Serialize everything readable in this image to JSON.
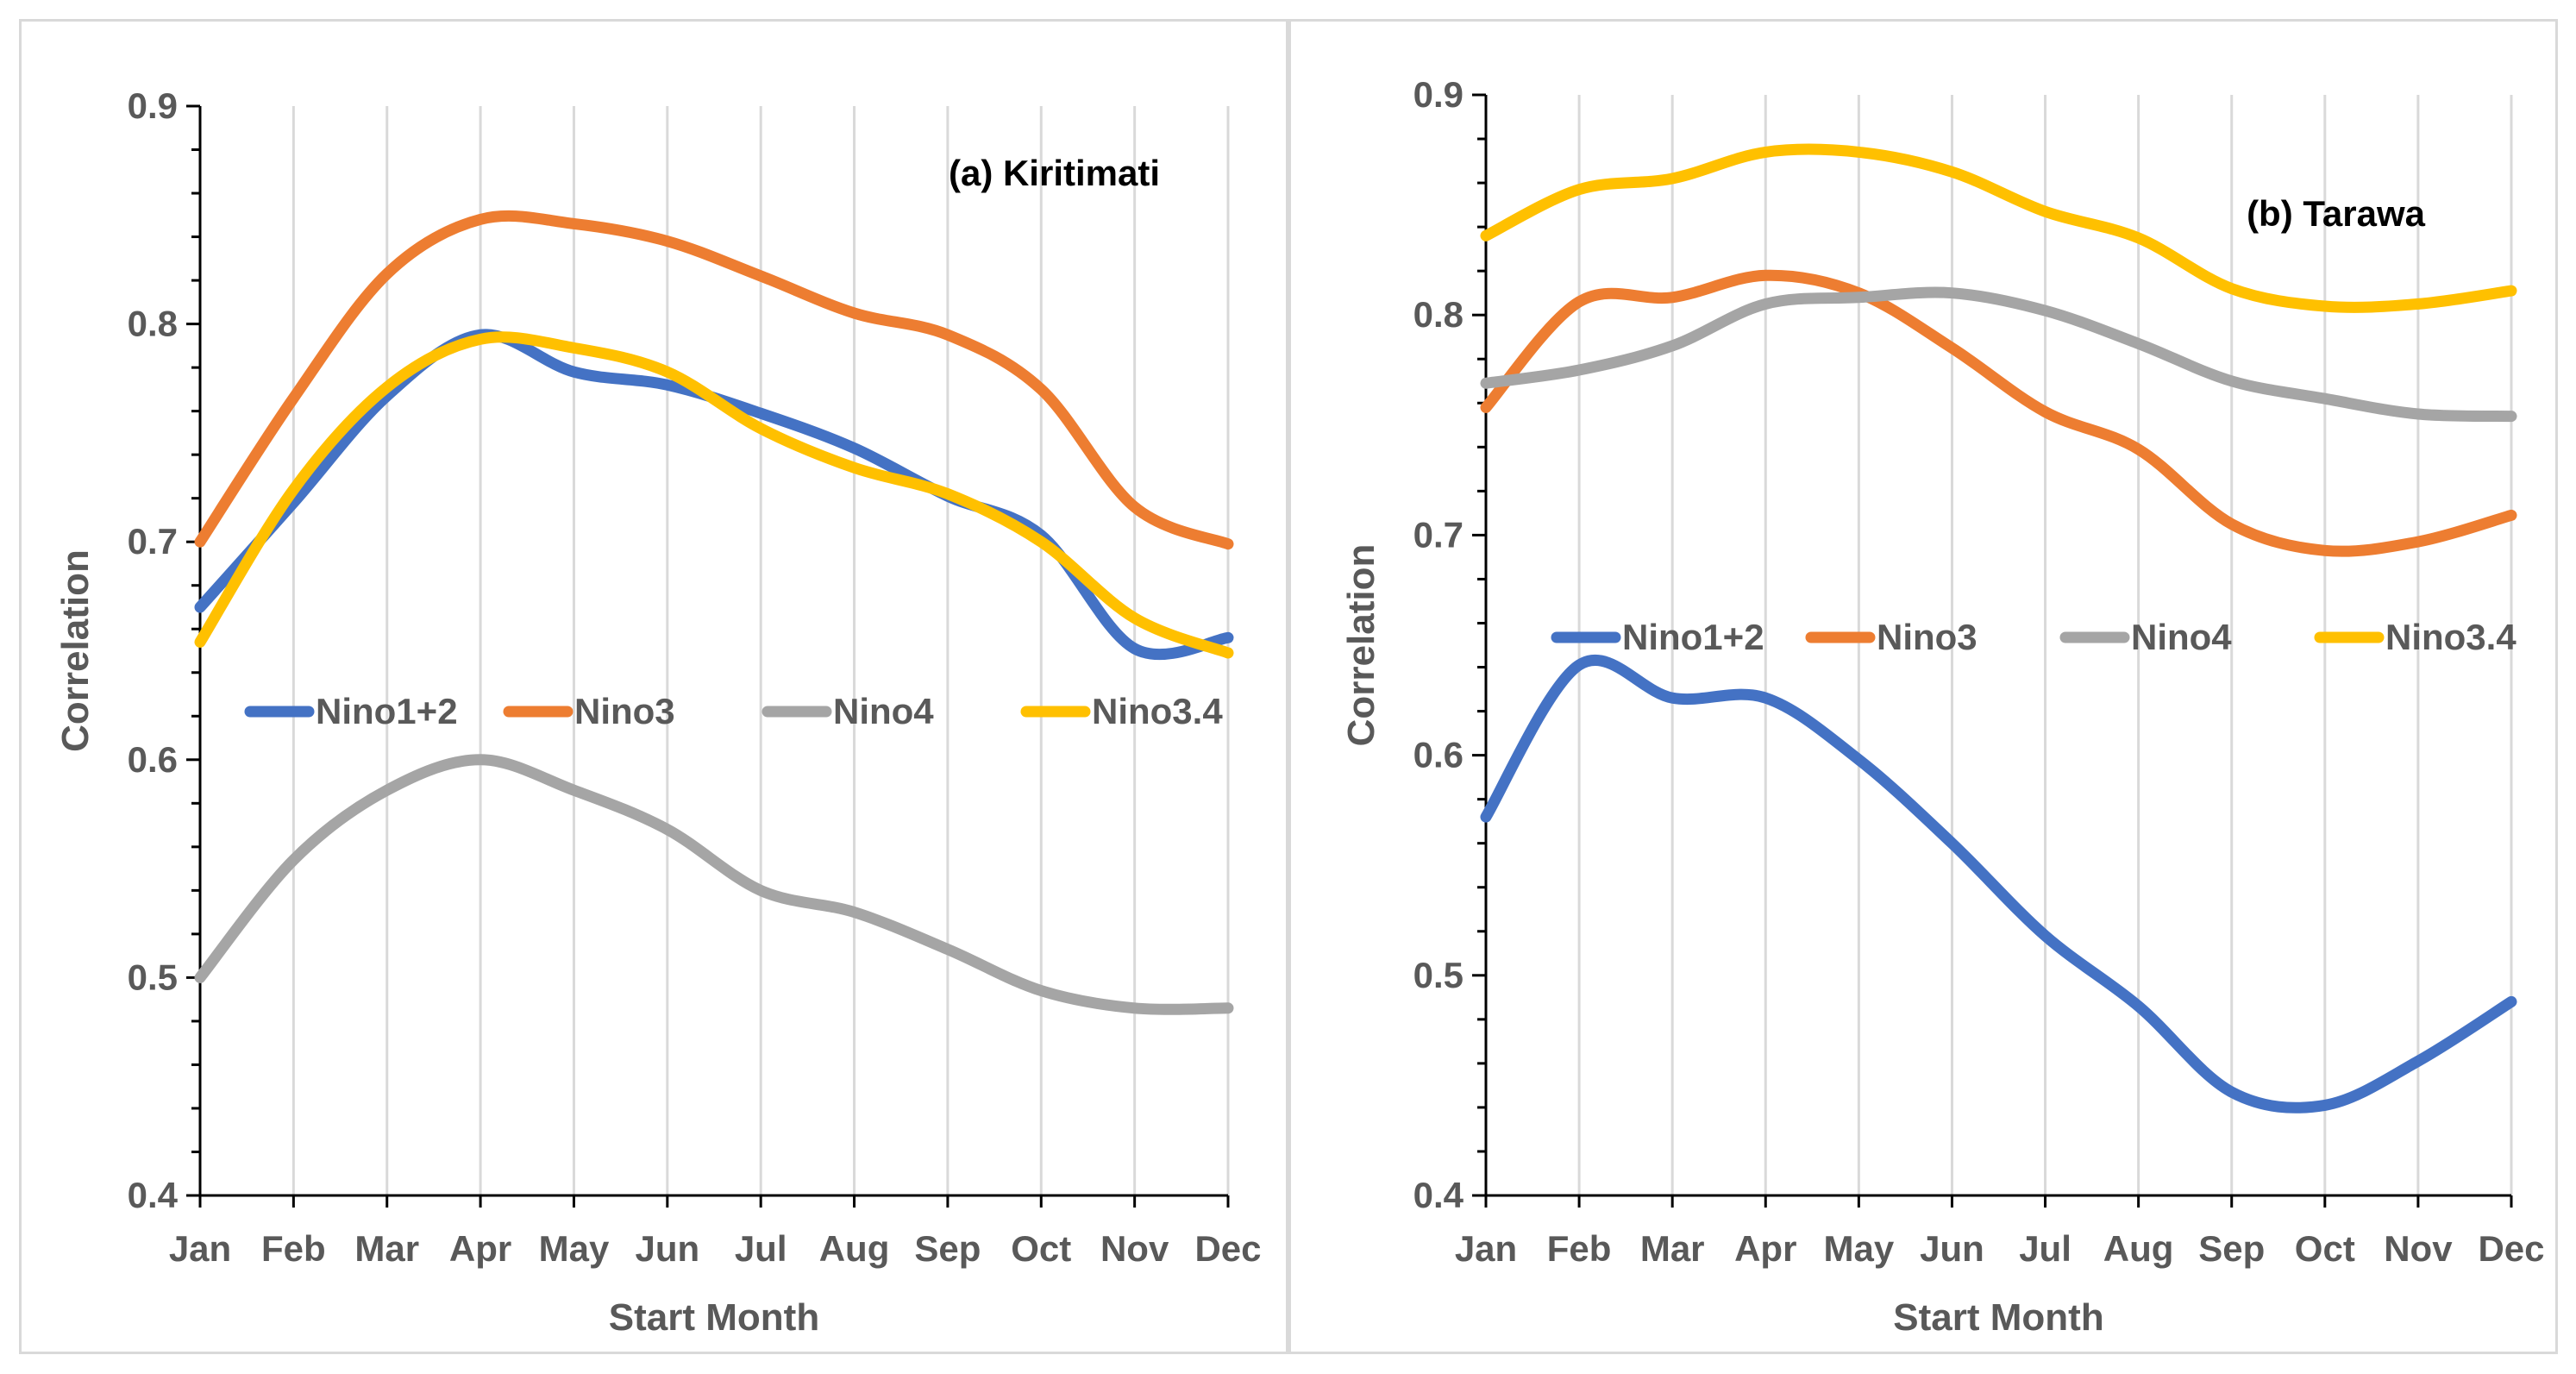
{
  "chart_data": [
    {
      "type": "line",
      "title": "",
      "annotation": "(a) Kiritimati",
      "xlabel": "Start Month",
      "ylabel": "Correlation",
      "categories": [
        "Jan",
        "Feb",
        "Mar",
        "Apr",
        "May",
        "Jun",
        "Jul",
        "Aug",
        "Sep",
        "Oct",
        "Nov",
        "Dec"
      ],
      "ylim": [
        0.4,
        0.9
      ],
      "yticks": [
        "0.4",
        "0.5",
        "0.6",
        "0.7",
        "0.8",
        "0.9"
      ],
      "grid": "vertical",
      "legend": "middle",
      "series": [
        {
          "name": "Nino1+2",
          "color": "#4472C4",
          "values": [
            0.67,
            0.718,
            0.767,
            0.795,
            0.778,
            0.772,
            0.759,
            0.743,
            0.721,
            0.703,
            0.651,
            0.656
          ]
        },
        {
          "name": "Nino3",
          "color": "#ED7D31",
          "values": [
            0.7,
            0.766,
            0.823,
            0.848,
            0.846,
            0.838,
            0.822,
            0.805,
            0.795,
            0.77,
            0.716,
            0.699
          ]
        },
        {
          "name": "Nino4",
          "color": "#A5A5A5",
          "values": [
            0.5,
            0.554,
            0.586,
            0.6,
            0.586,
            0.568,
            0.54,
            0.53,
            0.513,
            0.494,
            0.486,
            0.486
          ]
        },
        {
          "name": "Nino3.4",
          "color": "#FFC000",
          "values": [
            0.654,
            0.724,
            0.771,
            0.793,
            0.789,
            0.778,
            0.752,
            0.734,
            0.722,
            0.7,
            0.665,
            0.649
          ]
        }
      ]
    },
    {
      "type": "line",
      "title": "",
      "annotation": "(b) Tarawa",
      "xlabel": "Start Month",
      "ylabel": "Correlation",
      "categories": [
        "Jan",
        "Feb",
        "Mar",
        "Apr",
        "May",
        "Jun",
        "Jul",
        "Aug",
        "Sep",
        "Oct",
        "Nov",
        "Dec"
      ],
      "ylim": [
        0.4,
        0.9
      ],
      "yticks": [
        "0.4",
        "0.5",
        "0.6",
        "0.7",
        "0.8",
        "0.9"
      ],
      "grid": "vertical",
      "legend": "middle",
      "series": [
        {
          "name": "Nino1+2",
          "color": "#4472C4",
          "values": [
            0.572,
            0.641,
            0.626,
            0.626,
            0.598,
            0.56,
            0.518,
            0.486,
            0.447,
            0.441,
            0.461,
            0.488
          ]
        },
        {
          "name": "Nino3",
          "color": "#ED7D31",
          "values": [
            0.758,
            0.806,
            0.808,
            0.818,
            0.81,
            0.785,
            0.756,
            0.739,
            0.705,
            0.693,
            0.697,
            0.709
          ]
        },
        {
          "name": "Nino4",
          "color": "#A5A5A5",
          "values": [
            0.769,
            0.775,
            0.786,
            0.805,
            0.808,
            0.81,
            0.802,
            0.787,
            0.77,
            0.762,
            0.755,
            0.754
          ]
        },
        {
          "name": "Nino3.4",
          "color": "#FFC000",
          "values": [
            0.836,
            0.857,
            0.862,
            0.874,
            0.874,
            0.865,
            0.847,
            0.835,
            0.812,
            0.804,
            0.805,
            0.811
          ]
        }
      ]
    }
  ]
}
